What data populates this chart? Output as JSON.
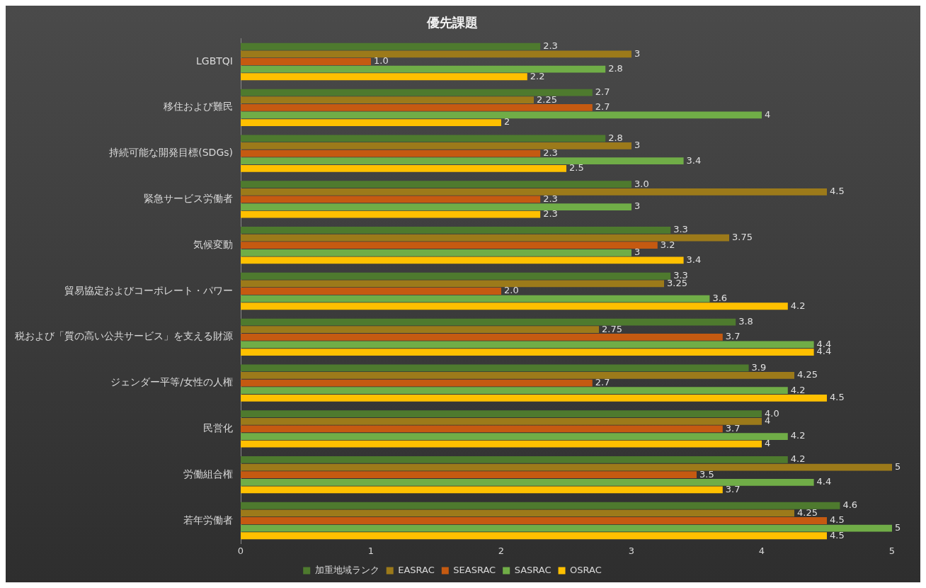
{
  "chart_data": {
    "type": "bar",
    "orientation": "horizontal",
    "title": "優先課題",
    "categories": [
      "LGBTQI",
      "移住および難民",
      "持続可能な開発目標(SDGs)",
      "緊急サービス労働者",
      "気候変動",
      "貿易協定およびコーポレート・パワー",
      "税および「質の高い公共サービス」を支える財源",
      "ジェンダー平等/女性の人権",
      "民営化",
      "労働組合権",
      "若年労働者"
    ],
    "series": [
      {
        "name": "加重地域ランク",
        "color": "#4e7a2e",
        "values": [
          2.3,
          2.7,
          2.8,
          3.0,
          3.3,
          3.3,
          3.8,
          3.9,
          4.0,
          4.2,
          4.6
        ],
        "value_labels": [
          "2.3",
          "2.7",
          "2.8",
          "3.0",
          "3.3",
          "3.3",
          "3.8",
          "3.9",
          "4.0",
          "4.2",
          "4.6"
        ]
      },
      {
        "name": "EASRAC",
        "color": "#9c7a1a",
        "values": [
          3,
          2.25,
          3,
          4.5,
          3.75,
          3.25,
          2.75,
          4.25,
          4,
          5,
          4.25
        ],
        "value_labels": [
          "3",
          "2.25",
          "3",
          "4.5",
          "3.75",
          "3.25",
          "2.75",
          "4.25",
          "4",
          "5",
          "4.25"
        ]
      },
      {
        "name": "SEASRAC",
        "color": "#c55a11",
        "values": [
          1.0,
          2.7,
          2.3,
          2.3,
          3.2,
          2.0,
          3.7,
          2.7,
          3.7,
          3.5,
          4.5
        ],
        "value_labels": [
          "1.0",
          "2.7",
          "2.3",
          "2.3",
          "3.2",
          "2.0",
          "3.7",
          "2.7",
          "3.7",
          "3.5",
          "4.5"
        ]
      },
      {
        "name": "SASRAC",
        "color": "#70ad47",
        "values": [
          2.8,
          4,
          3.4,
          3,
          3,
          3.6,
          4.4,
          4.2,
          4.2,
          4.4,
          5
        ],
        "value_labels": [
          "2.8",
          "4",
          "3.4",
          "3",
          "3",
          "3.6",
          "4.4",
          "4.2",
          "4.2",
          "4.4",
          "5"
        ]
      },
      {
        "name": "OSRAC",
        "color": "#ffc000",
        "values": [
          2.2,
          2,
          2.5,
          2.3,
          3.4,
          4.2,
          4.4,
          4.5,
          4,
          3.7,
          4.5
        ],
        "value_labels": [
          "2.2",
          "2",
          "2.5",
          "2.3",
          "3.4",
          "4.2",
          "4.4",
          "4.5",
          "4",
          "3.7",
          "4.5"
        ]
      }
    ],
    "xlim": [
      0,
      5
    ],
    "xticks": [
      0,
      1,
      2,
      3,
      4,
      5
    ],
    "grid": false,
    "legend": "bottom"
  }
}
